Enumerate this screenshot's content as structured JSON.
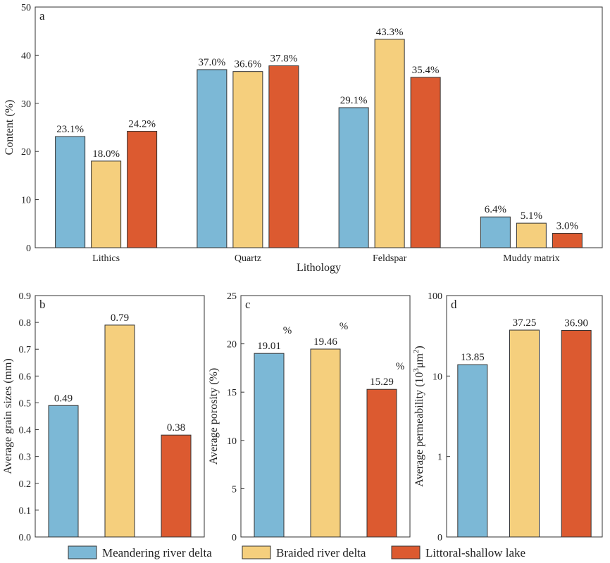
{
  "colors": {
    "Meandering river delta": "#7cb8d6",
    "Braided river delta": "#f5cf7d",
    "Littoral-shallow lake": "#dc5a30"
  },
  "legend": {
    "items": [
      "Meandering river delta",
      "Braided river delta",
      "Littoral-shallow lake"
    ],
    "placement": "bottom"
  },
  "chart_data": [
    {
      "panel": "a",
      "type": "bar",
      "xlabel": "Lithology",
      "ylabel": "Content (%)",
      "ylim": [
        0,
        50
      ],
      "yticks": [
        0,
        10,
        20,
        30,
        40,
        50
      ],
      "categories": [
        "Lithics",
        "Quartz",
        "Feldspar",
        "Muddy matrix"
      ],
      "series": [
        {
          "name": "Meandering river delta",
          "values": [
            23.1,
            37.0,
            29.1,
            6.4
          ],
          "labels": [
            "23.1%",
            "37.0%",
            "29.1%",
            "6.4%"
          ]
        },
        {
          "name": "Braided river delta",
          "values": [
            18.0,
            36.6,
            43.3,
            5.1
          ],
          "labels": [
            "18.0%",
            "36.6%",
            "43.3%",
            "5.1%"
          ]
        },
        {
          "name": "Littoral-shallow lake",
          "values": [
            24.2,
            37.8,
            35.4,
            3.0
          ],
          "labels": [
            "24.2%",
            "37.8%",
            "35.4%",
            "3.0%"
          ]
        }
      ]
    },
    {
      "panel": "b",
      "type": "bar",
      "ylabel": "Average grain sizes (mm)",
      "ylim": [
        0,
        0.9
      ],
      "yticks": [
        "0.0",
        "0.1",
        "0.2",
        "0.3",
        "0.4",
        "0.5",
        "0.6",
        "0.7",
        "0.8",
        "0.9"
      ],
      "categories": [
        "Meandering river delta",
        "Braided river delta",
        "Littoral-shallow lake"
      ],
      "values": [
        0.49,
        0.79,
        0.38
      ],
      "labels": [
        "0.49",
        "0.79",
        "0.38"
      ]
    },
    {
      "panel": "c",
      "type": "bar",
      "ylabel": "Average porosity (%)",
      "ylim": [
        0,
        25
      ],
      "yticks": [
        0,
        5,
        10,
        15,
        20,
        25
      ],
      "categories": [
        "Meandering river delta",
        "Braided river delta",
        "Littoral-shallow lake"
      ],
      "values": [
        19.01,
        19.46,
        15.29
      ],
      "labels": [
        "19.01",
        "19.46",
        "15.29"
      ],
      "label_suffix": "%"
    },
    {
      "panel": "d",
      "type": "bar",
      "yscale": "log",
      "ylabel": "Average permeability (10³μm²)",
      "ylim": [
        0.1,
        100
      ],
      "yticks": [
        0.1,
        1,
        10,
        100
      ],
      "yticklabels": [
        "0",
        "1",
        "10",
        "100"
      ],
      "categories": [
        "Meandering river delta",
        "Braided river delta",
        "Littoral-shallow lake"
      ],
      "values": [
        13.85,
        37.25,
        36.9
      ],
      "labels": [
        "13.85",
        "37.25",
        "36.90"
      ]
    }
  ]
}
